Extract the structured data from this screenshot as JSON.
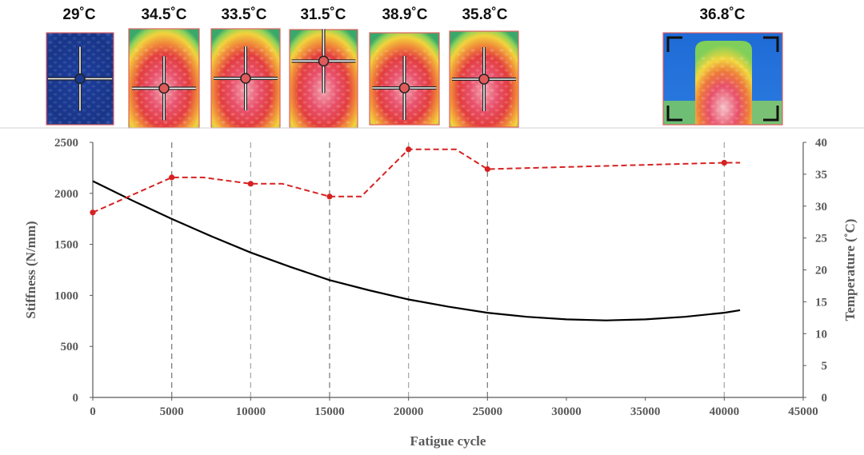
{
  "chart_data": {
    "type": "line",
    "x_axis": {
      "label": "Fatigue cycle",
      "range": [
        0,
        45000
      ],
      "ticks": [
        "0",
        "5000",
        "10000",
        "15000",
        "20000",
        "25000",
        "30000",
        "35000",
        "40000",
        "45000"
      ]
    },
    "y_axis_left": {
      "label": "Stiffness (N/mm)",
      "range": [
        0,
        2500
      ],
      "ticks": [
        "0",
        "500",
        "1000",
        "1500",
        "2000",
        "2500"
      ]
    },
    "y_axis_right": {
      "label": "Temperature (˚C)",
      "range": [
        0,
        40
      ],
      "ticks": [
        "0",
        "5",
        "10",
        "15",
        "20",
        "25",
        "30",
        "35",
        "40"
      ]
    },
    "grid": "vertical dashed lines at thermal-image cycles",
    "legend": "none",
    "series": [
      {
        "axis": "left",
        "style": "solid",
        "color": "#000000",
        "x": [
          0,
          2500,
          5000,
          7500,
          10000,
          12500,
          15000,
          17500,
          20000,
          22500,
          25000,
          27500,
          30000,
          32500,
          35000,
          37500,
          40000,
          41000
        ],
        "y": [
          2120,
          1930,
          1750,
          1580,
          1420,
          1280,
          1150,
          1050,
          960,
          890,
          830,
          790,
          765,
          755,
          765,
          790,
          830,
          855
        ]
      },
      {
        "axis": "right",
        "style": "dashed",
        "color": "#d62222",
        "x": [
          0,
          5000,
          7000,
          10000,
          12000,
          15000,
          17000,
          20000,
          23000,
          25000,
          40000,
          41000
        ],
        "y": [
          29,
          34.5,
          34.5,
          33.5,
          33.5,
          31.5,
          31.5,
          38.9,
          38.9,
          35.8,
          36.8,
          36.8
        ],
        "markers_x": [
          0,
          5000,
          10000,
          15000,
          20000,
          25000,
          40000
        ],
        "markers_y": [
          29,
          34.5,
          33.5,
          31.5,
          38.9,
          35.8,
          36.8
        ]
      }
    ],
    "thermal_images": [
      {
        "cycle": 0,
        "label": "29˚C",
        "state": "cold",
        "crosshair": "center"
      },
      {
        "cycle": 5000,
        "label": "34.5˚C",
        "state": "hot",
        "crosshair": "lower"
      },
      {
        "cycle": 10000,
        "label": "33.5˚C",
        "state": "hot",
        "crosshair": "center"
      },
      {
        "cycle": 15000,
        "label": "31.5˚C",
        "state": "hot",
        "crosshair": "upper"
      },
      {
        "cycle": 20000,
        "label": "38.9˚C",
        "state": "hot",
        "crosshair": "lower"
      },
      {
        "cycle": 25000,
        "label": "35.8˚C",
        "state": "hot",
        "crosshair": "center"
      },
      {
        "cycle": 40000,
        "label": "36.8˚C",
        "state": "hot",
        "crosshair": "corners"
      }
    ]
  }
}
